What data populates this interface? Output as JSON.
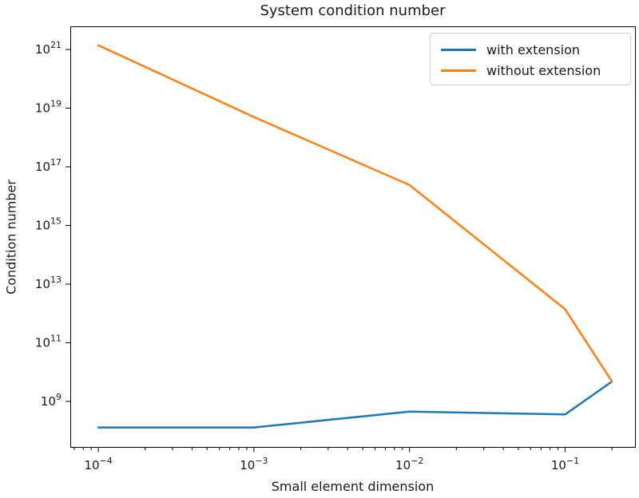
{
  "figure": {
    "title": "System condition number",
    "xlabel": "Small element dimension",
    "ylabel": "Condition number"
  },
  "chart_data": {
    "type": "line",
    "title": "System condition number",
    "xlabel": "Small element dimension",
    "ylabel": "Condition number",
    "x_scale": "log",
    "y_scale": "log",
    "grid": false,
    "legend_position": "upper right",
    "background": "#ffffff",
    "axis_color": "#000000",
    "text_color": "#1a1a1a",
    "x": [
      0.0001,
      0.001,
      0.01,
      0.1,
      0.2
    ],
    "series": [
      {
        "name": "with extension",
        "color": "#1f77b4",
        "values": [
          130000000.0,
          130000000.0,
          450000000.0,
          360000000.0,
          4800000000.0
        ]
      },
      {
        "name": "without extension",
        "color": "#ff7f0e",
        "values": [
          1.4e+21,
          5e+18,
          2.4e+16,
          1400000000000.0,
          4800000000.0
        ]
      }
    ],
    "xtick_exponents": [
      -4,
      -3,
      -2,
      -1
    ],
    "ytick_exponents": [
      9,
      11,
      13,
      15,
      17,
      19,
      21
    ],
    "xlim_log10": [
      -4.18,
      -0.551
    ],
    "ylim_log10": [
      7.45,
      21.79
    ]
  }
}
